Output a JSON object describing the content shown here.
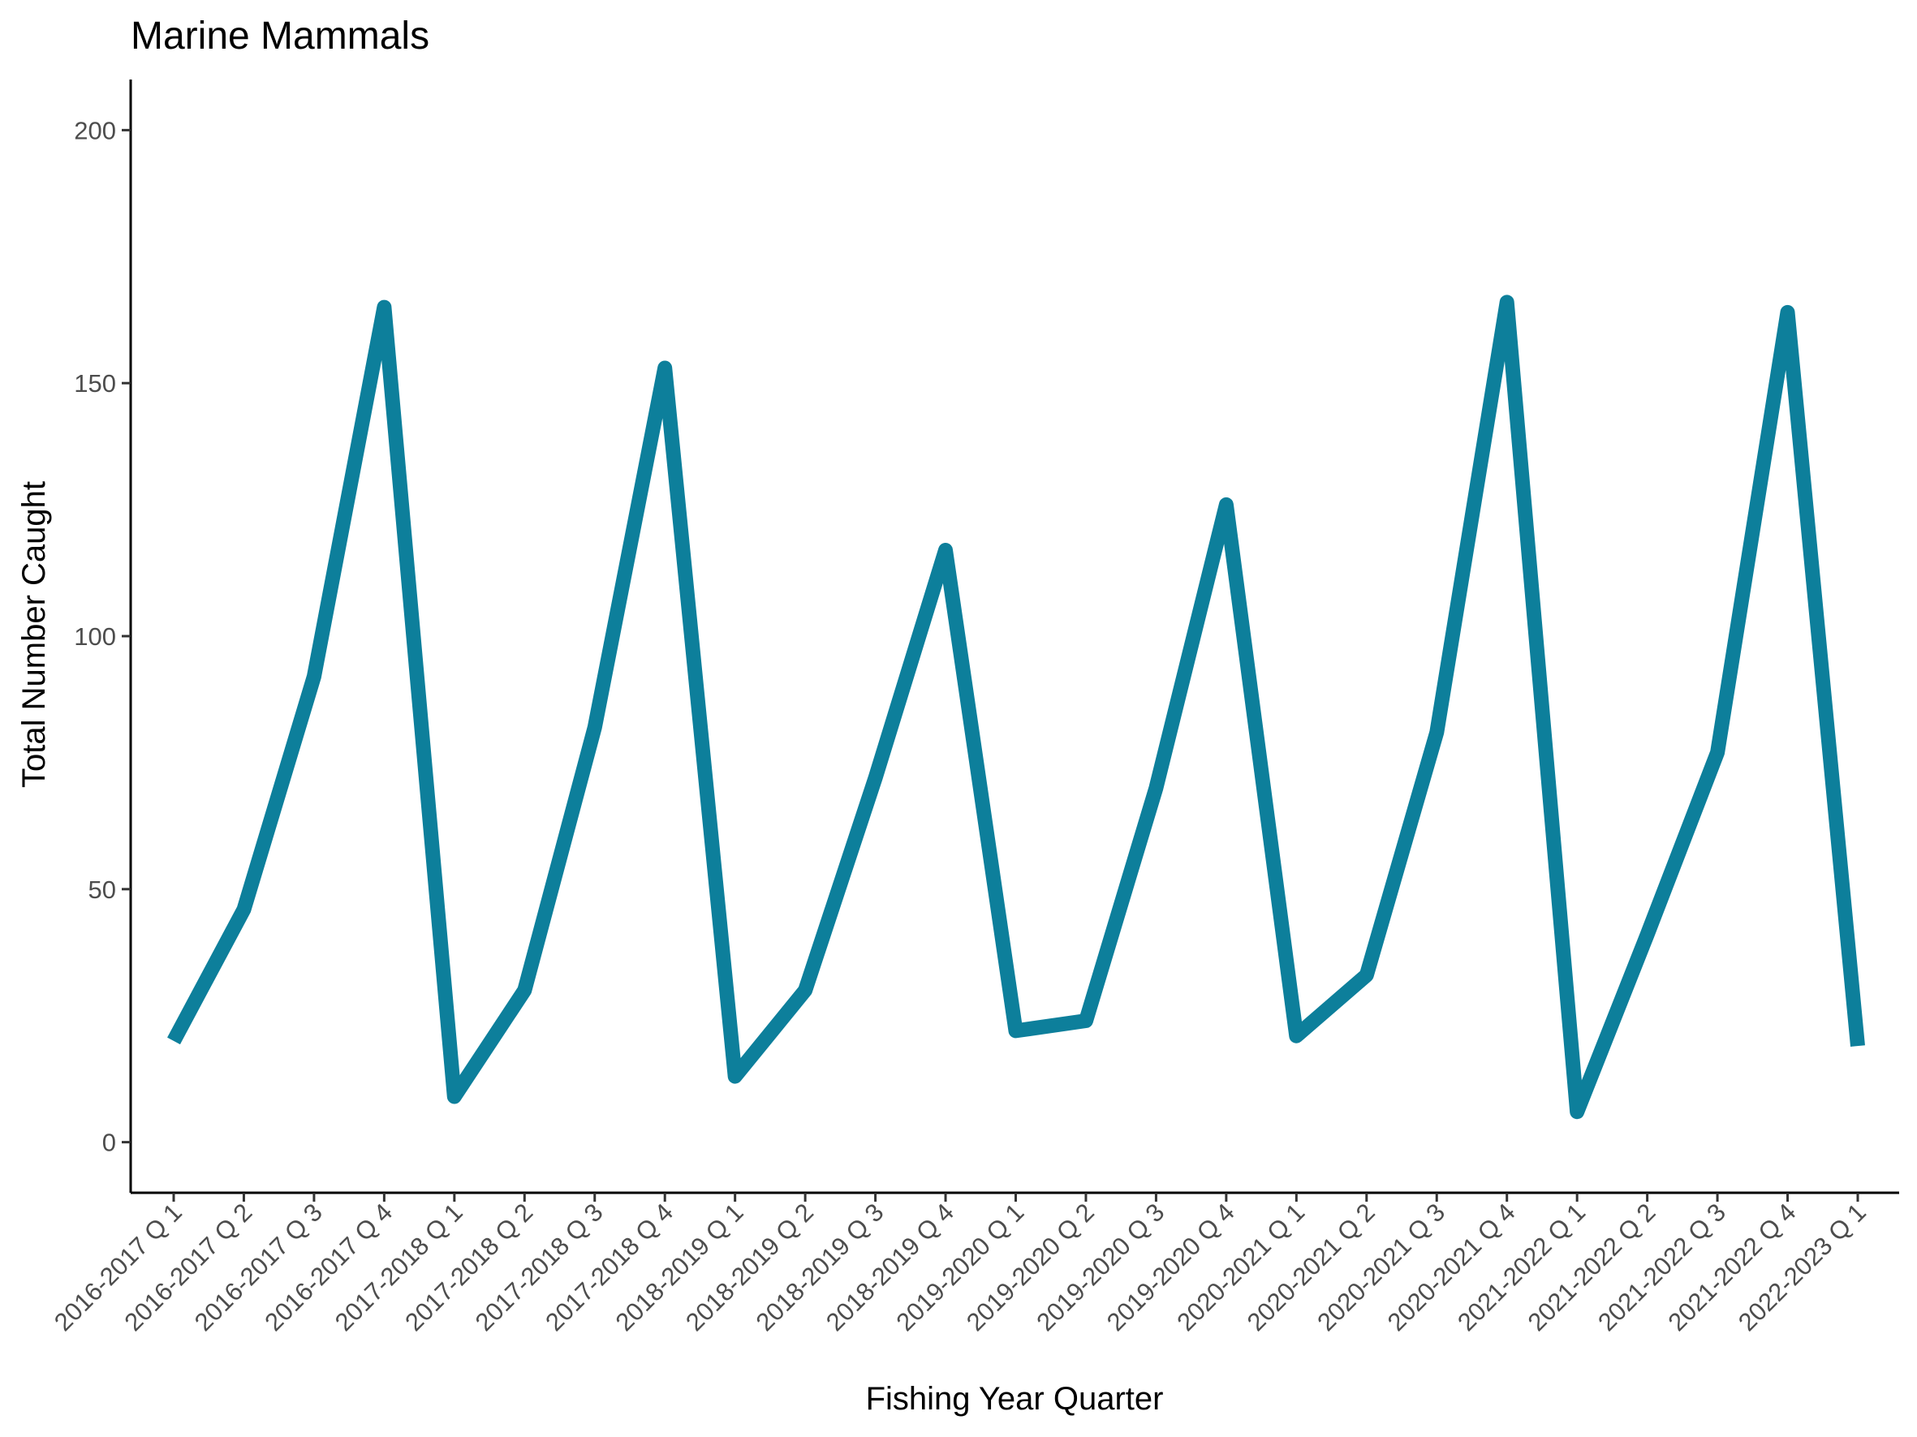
{
  "chart_data": {
    "type": "line",
    "title": "Marine Mammals",
    "xlabel": "Fishing Year Quarter",
    "ylabel": "Total Number Caught",
    "categories": [
      "2016-2017 Q 1",
      "2016-2017 Q 2",
      "2016-2017 Q 3",
      "2016-2017 Q 4",
      "2017-2018 Q 1",
      "2017-2018 Q 2",
      "2017-2018 Q 3",
      "2017-2018 Q 4",
      "2018-2019 Q 1",
      "2018-2019 Q 2",
      "2018-2019 Q 3",
      "2018-2019 Q 4",
      "2019-2020 Q 1",
      "2019-2020 Q 2",
      "2019-2020 Q 3",
      "2019-2020 Q 4",
      "2020-2021 Q 1",
      "2020-2021 Q 2",
      "2020-2021 Q 3",
      "2020-2021 Q 4",
      "2021-2022 Q 1",
      "2021-2022 Q 2",
      "2021-2022 Q 3",
      "2021-2022 Q 4",
      "2022-2023 Q 1"
    ],
    "series": [
      {
        "values": [
          20,
          46,
          92,
          165,
          9,
          30,
          82,
          153,
          13,
          30,
          72,
          117,
          22,
          24,
          70,
          126,
          21,
          33,
          81,
          166,
          6,
          41,
          77,
          164,
          19
        ]
      }
    ],
    "ylim": [
      -10,
      210
    ],
    "yticks": [
      0,
      50,
      100,
      150,
      200
    ],
    "grid": false,
    "legend": "none",
    "colors": {
      "line": "#0d7f9b",
      "axis": "#000000",
      "tick_text": "#4d4d4d"
    }
  }
}
